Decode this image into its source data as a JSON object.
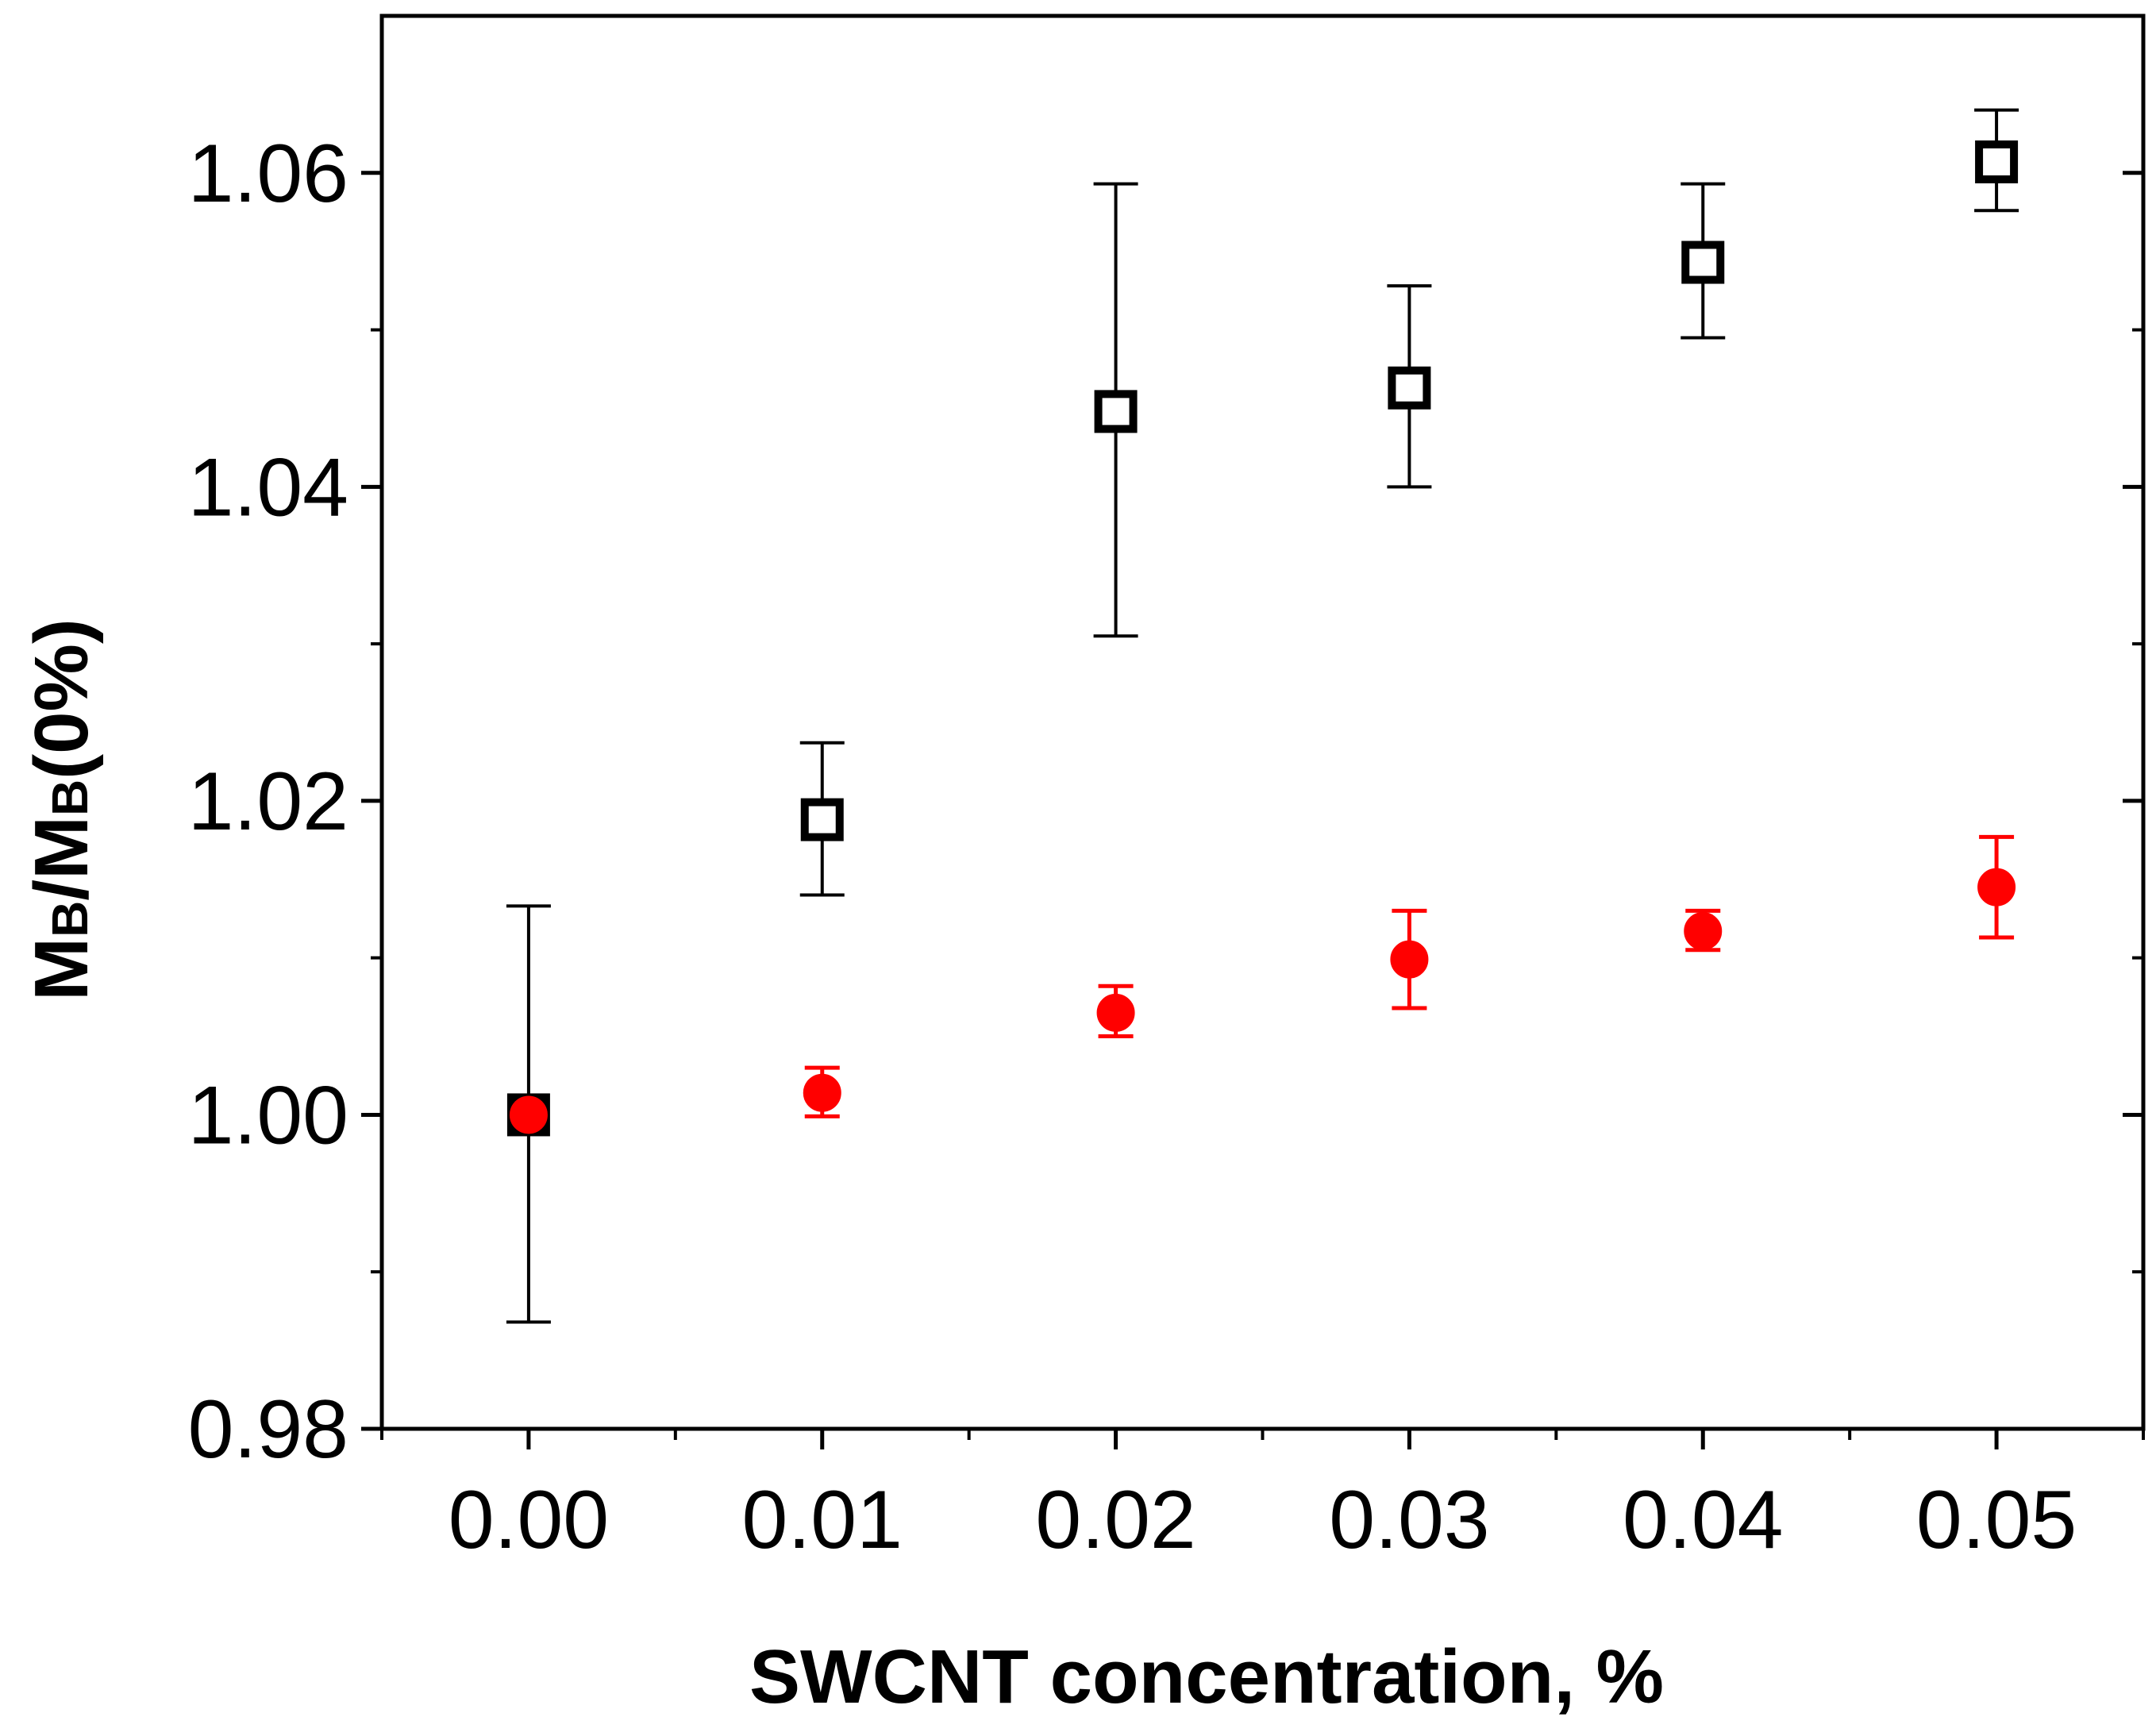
{
  "chart_data": {
    "type": "scatter",
    "title": "",
    "xlabel": "SWCNT concentration, %",
    "ylabel": {
      "main": "M",
      "sub": "B",
      "sep": "/",
      "tail": "(0%)"
    },
    "xlim": [
      -0.005,
      0.055
    ],
    "ylim": [
      0.98,
      1.07
    ],
    "x_ticks": [
      0.0,
      0.01,
      0.02,
      0.03,
      0.04,
      0.05
    ],
    "x_tick_labels": [
      "0.00",
      "0.01",
      "0.02",
      "0.03",
      "0.04",
      "0.05"
    ],
    "y_ticks": [
      0.98,
      1.0,
      1.02,
      1.04,
      1.06
    ],
    "y_tick_labels": [
      "0.98",
      "1.00",
      "1.02",
      "1.04",
      "1.06"
    ],
    "grid": false,
    "legend": null,
    "series": [
      {
        "name": "open squares",
        "marker": "square-open",
        "color": "#000000",
        "x": [
          0.0,
          0.01,
          0.02,
          0.03,
          0.04,
          0.05
        ],
        "y": [
          1.0,
          1.0188,
          1.0448,
          1.0463,
          1.0543,
          1.0607
        ],
        "err_low": [
          0.9868,
          1.014,
          1.0305,
          1.04,
          1.0495,
          1.0576
        ],
        "err_high": [
          1.0133,
          1.0237,
          1.0593,
          1.0528,
          1.0593,
          1.064
        ]
      },
      {
        "name": "filled circles",
        "marker": "circle-filled",
        "color": "#ff0000",
        "x": [
          0.0,
          0.01,
          0.02,
          0.03,
          0.04,
          0.05
        ],
        "y": [
          1.0,
          1.0014,
          1.0065,
          1.0099,
          1.0117,
          1.0145
        ],
        "err_low": [
          1.0,
          0.9999,
          1.005,
          1.0068,
          1.0105,
          1.0113
        ],
        "err_high": [
          1.0,
          1.003,
          1.0082,
          1.013,
          1.013,
          1.0177
        ]
      }
    ]
  }
}
